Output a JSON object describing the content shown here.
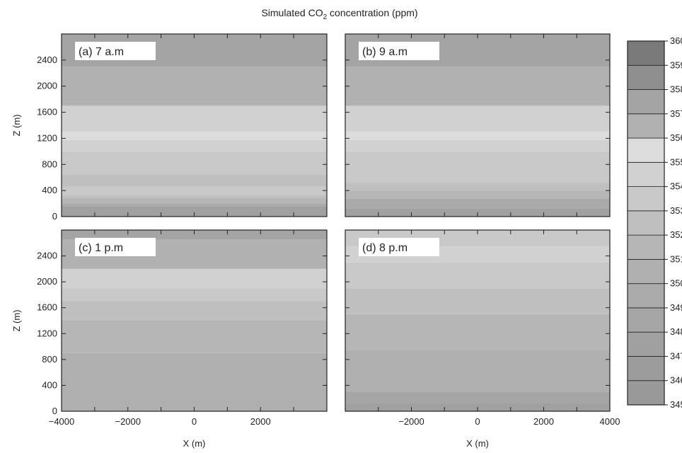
{
  "chart_data": {
    "type": "heatmap",
    "title": "Simulated CO2 concentration (ppm)",
    "title_parts": {
      "before": "Simulated CO",
      "subscript": "2",
      "after": " concentration (ppm)"
    },
    "xlabel": "X (m)",
    "ylabel": "Z (m)",
    "xlim": [
      -4000,
      4000
    ],
    "ylim": [
      0,
      2800
    ],
    "colorbar": {
      "vmin": 345,
      "vmax": 360,
      "levels": [
        345,
        346,
        347,
        348,
        349,
        350,
        351,
        352,
        353,
        354,
        355,
        356,
        357,
        358,
        359,
        360
      ],
      "labels": [
        "345",
        "346",
        "347",
        "348",
        "349",
        "350",
        "351",
        "352",
        "353",
        "354",
        "355",
        "356",
        "357",
        "358",
        "359",
        "360"
      ],
      "colors": [
        "#999999",
        "#9c9c9c",
        "#a0a0a0",
        "#a5a5a5",
        "#aaaaaa",
        "#afafaf",
        "#b6b6b6",
        "#bfbfbf",
        "#c8c8c8",
        "#d1d1d1",
        "#dcdcdc",
        "#b1b1b1",
        "#a4a4a4",
        "#8f8f8f",
        "#7a7a7a"
      ]
    },
    "left_ytick_labels": [
      "0",
      "400",
      "800",
      "1200",
      "1600",
      "2000",
      "2400"
    ],
    "bottom_xtick_labels": {
      "left": [
        "-4000",
        "-2000",
        "0",
        "2000"
      ],
      "right": [
        "-2000",
        "0",
        "2000",
        "4000"
      ]
    },
    "panels": [
      {
        "label": "(a) 7 a.m",
        "layers": [
          {
            "top": 160,
            "value": 347.2
          },
          {
            "top": 200,
            "value": 349.0
          },
          {
            "top": 290,
            "value": 351.0
          },
          {
            "top": 330,
            "value": 352.5
          },
          {
            "top": 460,
            "value": 353.5
          },
          {
            "top": 640,
            "value": 352.2
          },
          {
            "top": 1000,
            "value": 353.8
          },
          {
            "top": 1180,
            "value": 354.3
          },
          {
            "top": 1300,
            "value": 355.0
          },
          {
            "top": 1700,
            "value": 354.0
          },
          {
            "top": 2300,
            "value": 356.3
          },
          {
            "top": 2800,
            "value": 357.7
          }
        ]
      },
      {
        "label": "(b) 9 a.m",
        "layers": [
          {
            "top": 120,
            "value": 347.5
          },
          {
            "top": 280,
            "value": 349.8
          },
          {
            "top": 400,
            "value": 351.2
          },
          {
            "top": 520,
            "value": 352.2
          },
          {
            "top": 1000,
            "value": 353.8
          },
          {
            "top": 1180,
            "value": 354.4
          },
          {
            "top": 1300,
            "value": 355.0
          },
          {
            "top": 1700,
            "value": 354.0
          },
          {
            "top": 2300,
            "value": 356.3
          },
          {
            "top": 2800,
            "value": 357.7
          }
        ]
      },
      {
        "label": "(c) 1 p.m",
        "layers": [
          {
            "top": 900,
            "value": 350.6
          },
          {
            "top": 1400,
            "value": 351.2
          },
          {
            "top": 1700,
            "value": 352.3
          },
          {
            "top": 1900,
            "value": 353.0
          },
          {
            "top": 2200,
            "value": 354.4
          },
          {
            "top": 2650,
            "value": 356.2
          },
          {
            "top": 2800,
            "value": 357.5
          }
        ]
      },
      {
        "label": "(d) 8 p.m",
        "layers": [
          {
            "top": 120,
            "value": 347.3
          },
          {
            "top": 300,
            "value": 348.9
          },
          {
            "top": 950,
            "value": 350.0
          },
          {
            "top": 1500,
            "value": 351.0
          },
          {
            "top": 1900,
            "value": 352.2
          },
          {
            "top": 2300,
            "value": 353.3
          },
          {
            "top": 2550,
            "value": 354.6
          },
          {
            "top": 2800,
            "value": 353.5
          }
        ]
      }
    ]
  }
}
